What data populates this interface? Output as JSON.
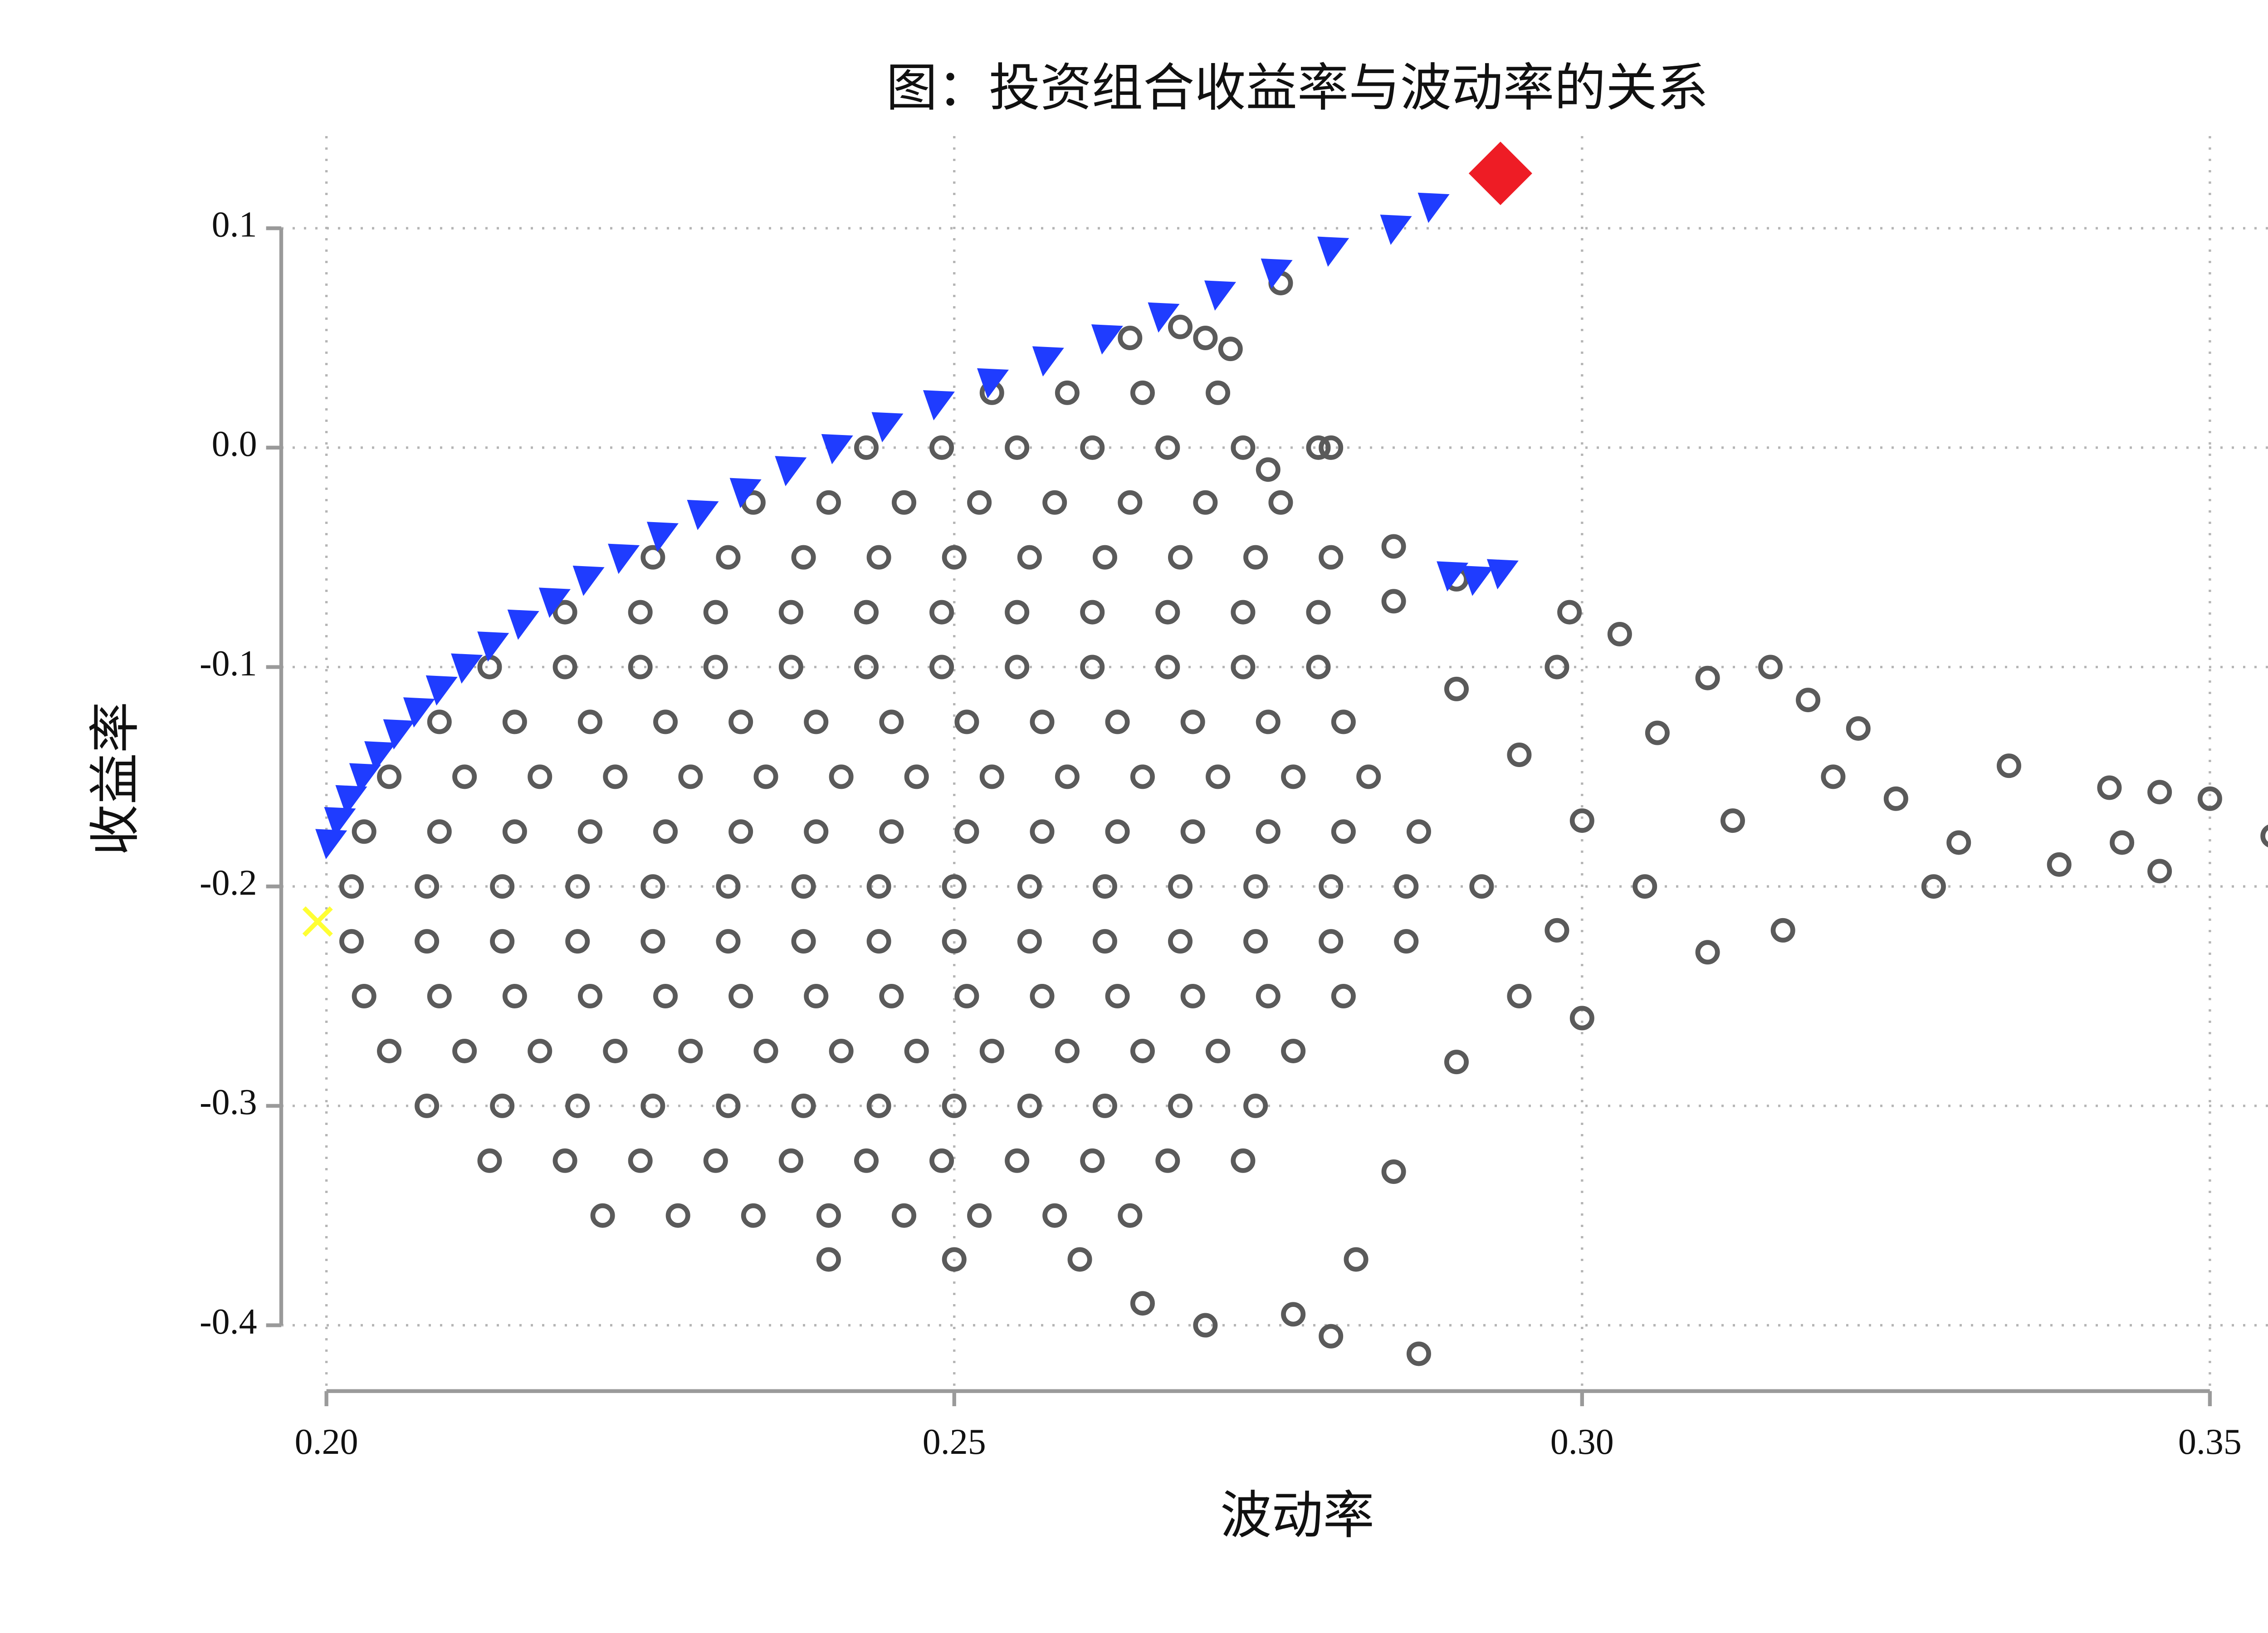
{
  "chart_data": {
    "type": "scatter",
    "title": "图：投资组合收益率与波动率的关系",
    "x_label": "波动率",
    "y_label": "收益率",
    "xlim": [
      0.1964,
      0.358
    ],
    "ylim": [
      -0.43,
      0.142
    ],
    "xticks": [
      {
        "value": 0.2,
        "label": "0.20"
      },
      0.25,
      {
        "value": 0.3,
        "label": "0.30"
      },
      0.35
    ],
    "yticks": [
      0.1,
      {
        "value": 0,
        "label": "0.0"
      },
      -0.1,
      -0.2,
      -0.3,
      -0.4
    ],
    "grid": true,
    "series": [
      {
        "color": "#5a5a5a",
        "marker": "circle",
        "x": [
          0.276,
          0.264,
          0.27,
          0.253,
          0.259,
          0.265,
          0.271,
          0.243,
          0.249,
          0.255,
          0.261,
          0.267,
          0.273,
          0.279,
          0.234,
          0.24,
          0.246,
          0.252,
          0.258,
          0.264,
          0.27,
          0.276,
          0.226,
          0.232,
          0.238,
          0.244,
          0.25,
          0.256,
          0.262,
          0.268,
          0.274,
          0.28,
          0.219,
          0.225,
          0.231,
          0.237,
          0.243,
          0.249,
          0.255,
          0.261,
          0.267,
          0.273,
          0.279,
          0.213,
          0.219,
          0.225,
          0.231,
          0.237,
          0.243,
          0.249,
          0.255,
          0.261,
          0.267,
          0.273,
          0.279,
          0.209,
          0.215,
          0.221,
          0.227,
          0.233,
          0.239,
          0.245,
          0.251,
          0.257,
          0.263,
          0.269,
          0.275,
          0.281,
          0.205,
          0.211,
          0.217,
          0.223,
          0.229,
          0.235,
          0.241,
          0.247,
          0.253,
          0.259,
          0.265,
          0.271,
          0.277,
          0.283,
          0.203,
          0.209,
          0.215,
          0.221,
          0.227,
          0.233,
          0.239,
          0.245,
          0.251,
          0.257,
          0.263,
          0.269,
          0.275,
          0.281,
          0.287,
          0.202,
          0.208,
          0.214,
          0.22,
          0.226,
          0.232,
          0.238,
          0.244,
          0.25,
          0.256,
          0.262,
          0.268,
          0.274,
          0.28,
          0.286,
          0.202,
          0.208,
          0.214,
          0.22,
          0.226,
          0.232,
          0.238,
          0.244,
          0.25,
          0.256,
          0.262,
          0.268,
          0.274,
          0.28,
          0.286,
          0.203,
          0.209,
          0.215,
          0.221,
          0.227,
          0.233,
          0.239,
          0.245,
          0.251,
          0.257,
          0.263,
          0.269,
          0.275,
          0.281,
          0.205,
          0.211,
          0.217,
          0.223,
          0.229,
          0.235,
          0.241,
          0.247,
          0.253,
          0.259,
          0.265,
          0.271,
          0.277,
          0.208,
          0.214,
          0.22,
          0.226,
          0.232,
          0.238,
          0.244,
          0.25,
          0.256,
          0.262,
          0.268,
          0.274,
          0.213,
          0.219,
          0.225,
          0.231,
          0.237,
          0.243,
          0.249,
          0.255,
          0.261,
          0.267,
          0.273,
          0.222,
          0.228,
          0.234,
          0.24,
          0.246,
          0.252,
          0.258,
          0.264,
          0.24,
          0.25,
          0.26,
          0.285,
          0.29,
          0.285,
          0.299,
          0.303,
          0.298,
          0.31,
          0.306,
          0.315,
          0.318,
          0.322,
          0.32,
          0.325,
          0.33,
          0.334,
          0.338,
          0.343,
          0.346,
          0.35,
          0.346,
          0.355,
          0.342,
          0.328,
          0.316,
          0.31,
          0.3,
          0.295,
          0.285,
          0.282,
          0.287,
          0.28,
          0.27,
          0.265,
          0.277,
          0.29,
          0.295,
          0.305,
          0.312,
          0.275,
          0.272,
          0.268,
          0.28,
          0.292,
          0.298,
          0.29,
          0.3
        ],
        "values": [
          0.075,
          0.05,
          0.05,
          0.025,
          0.025,
          0.025,
          0.025,
          0,
          0,
          0,
          0,
          0,
          0,
          0,
          -0.025,
          -0.025,
          -0.025,
          -0.025,
          -0.025,
          -0.025,
          -0.025,
          -0.025,
          -0.05,
          -0.05,
          -0.05,
          -0.05,
          -0.05,
          -0.05,
          -0.05,
          -0.05,
          -0.05,
          -0.05,
          -0.075,
          -0.075,
          -0.075,
          -0.075,
          -0.075,
          -0.075,
          -0.075,
          -0.075,
          -0.075,
          -0.075,
          -0.075,
          -0.1,
          -0.1,
          -0.1,
          -0.1,
          -0.1,
          -0.1,
          -0.1,
          -0.1,
          -0.1,
          -0.1,
          -0.1,
          -0.1,
          -0.125,
          -0.125,
          -0.125,
          -0.125,
          -0.125,
          -0.125,
          -0.125,
          -0.125,
          -0.125,
          -0.125,
          -0.125,
          -0.125,
          -0.125,
          -0.15,
          -0.15,
          -0.15,
          -0.15,
          -0.15,
          -0.15,
          -0.15,
          -0.15,
          -0.15,
          -0.15,
          -0.15,
          -0.15,
          -0.15,
          -0.15,
          -0.175,
          -0.175,
          -0.175,
          -0.175,
          -0.175,
          -0.175,
          -0.175,
          -0.175,
          -0.175,
          -0.175,
          -0.175,
          -0.175,
          -0.175,
          -0.175,
          -0.175,
          -0.2,
          -0.2,
          -0.2,
          -0.2,
          -0.2,
          -0.2,
          -0.2,
          -0.2,
          -0.2,
          -0.2,
          -0.2,
          -0.2,
          -0.2,
          -0.2,
          -0.2,
          -0.225,
          -0.225,
          -0.225,
          -0.225,
          -0.225,
          -0.225,
          -0.225,
          -0.225,
          -0.225,
          -0.225,
          -0.225,
          -0.225,
          -0.225,
          -0.225,
          -0.225,
          -0.25,
          -0.25,
          -0.25,
          -0.25,
          -0.25,
          -0.25,
          -0.25,
          -0.25,
          -0.25,
          -0.25,
          -0.25,
          -0.25,
          -0.25,
          -0.25,
          -0.275,
          -0.275,
          -0.275,
          -0.275,
          -0.275,
          -0.275,
          -0.275,
          -0.275,
          -0.275,
          -0.275,
          -0.275,
          -0.275,
          -0.275,
          -0.3,
          -0.3,
          -0.3,
          -0.3,
          -0.3,
          -0.3,
          -0.3,
          -0.3,
          -0.3,
          -0.3,
          -0.3,
          -0.3,
          -0.325,
          -0.325,
          -0.325,
          -0.325,
          -0.325,
          -0.325,
          -0.325,
          -0.325,
          -0.325,
          -0.325,
          -0.325,
          -0.35,
          -0.35,
          -0.35,
          -0.35,
          -0.35,
          -0.35,
          -0.35,
          -0.35,
          -0.37,
          -0.37,
          -0.37,
          -0.045,
          -0.06,
          -0.07,
          -0.075,
          -0.085,
          -0.1,
          -0.105,
          -0.13,
          -0.1,
          -0.115,
          -0.128,
          -0.15,
          -0.16,
          -0.18,
          -0.145,
          -0.19,
          -0.18,
          -0.193,
          -0.16,
          -0.157,
          -0.177,
          -0.155,
          -0.2,
          -0.22,
          -0.23,
          -0.26,
          -0.25,
          -0.33,
          -0.37,
          -0.413,
          -0.405,
          -0.4,
          -0.39,
          -0.395,
          -0.11,
          -0.14,
          -0.2,
          -0.17,
          -0.01,
          0.045,
          0.055,
          0,
          -0.2,
          -0.22,
          -0.28,
          -0.17
        ]
      },
      {
        "color": "#1f3cff",
        "marker": "triangle",
        "x": [
          0.2002,
          0.2009,
          0.2018,
          0.2029,
          0.2041,
          0.2056,
          0.2072,
          0.209,
          0.211,
          0.2131,
          0.2155,
          0.218,
          0.2207,
          0.2235,
          0.2266,
          0.2298,
          0.2332,
          0.2368,
          0.2405,
          0.2445,
          0.2486,
          0.2529,
          0.2573,
          0.262,
          0.2665,
          0.271,
          0.2755,
          0.28,
          0.285,
          0.288,
          0.2895,
          0.2915,
          0.2935
        ],
        "values": [
          -0.18,
          -0.17,
          -0.16,
          -0.15,
          -0.14,
          -0.13,
          -0.12,
          -0.11,
          -0.1,
          -0.09,
          -0.08,
          -0.07,
          -0.06,
          -0.05,
          -0.04,
          -0.03,
          -0.02,
          -0.01,
          0,
          0.01,
          0.02,
          0.03,
          0.04,
          0.05,
          0.06,
          0.07,
          0.08,
          0.09,
          0.1,
          0.11,
          -0.058,
          -0.06,
          -0.057
        ]
      },
      {
        "color": "#ee1c25",
        "marker": "diamond",
        "x": [
          0.2935
        ],
        "values": [
          0.125
        ]
      },
      {
        "color": "#ffff33",
        "marker": "x",
        "x": [
          0.1993
        ],
        "values": [
          -0.216
        ]
      }
    ]
  }
}
